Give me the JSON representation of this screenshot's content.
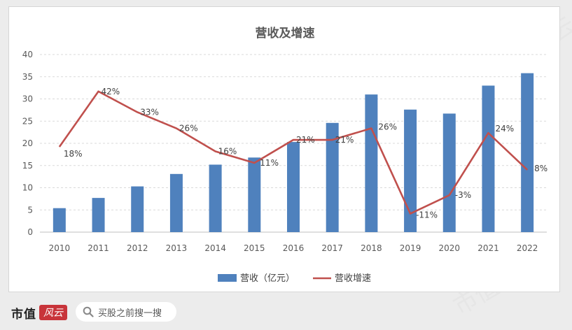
{
  "chart_data": {
    "type": "bar+line",
    "title": "营收及增速",
    "categories": [
      "2010",
      "2011",
      "2012",
      "2013",
      "2014",
      "2015",
      "2016",
      "2017",
      "2018",
      "2019",
      "2020",
      "2021",
      "2022"
    ],
    "series": [
      {
        "name": "营收（亿元）",
        "type": "bar",
        "axis": "left",
        "color": "#4f81bd",
        "values": [
          5.4,
          7.7,
          10.3,
          13.1,
          15.2,
          16.8,
          20.3,
          24.6,
          31.0,
          27.6,
          26.7,
          33.0,
          35.8
        ]
      },
      {
        "name": "营收增速",
        "type": "line",
        "axis": "right-hidden",
        "color": "#c0504d",
        "values": [
          18,
          42,
          33,
          26,
          16,
          11,
          21,
          21,
          26,
          -11,
          -3,
          24,
          8
        ],
        "labels": [
          "18%",
          "42%",
          "33%",
          "26%",
          "16%",
          "11%",
          "21%",
          "21%",
          "26%",
          "-11%",
          "-3%",
          "24%",
          "8%"
        ],
        "range": [
          -19,
          58
        ]
      }
    ],
    "y_ticks": [
      "0",
      "5",
      "10",
      "15",
      "20",
      "25",
      "30",
      "35",
      "40"
    ],
    "ylim": [
      0,
      40
    ],
    "grid": true,
    "legend_position": "bottom"
  },
  "footer": {
    "brand": "市值",
    "brand_seal": "风云",
    "search_text": "买股之前搜一搜"
  },
  "watermark": "市值风云"
}
